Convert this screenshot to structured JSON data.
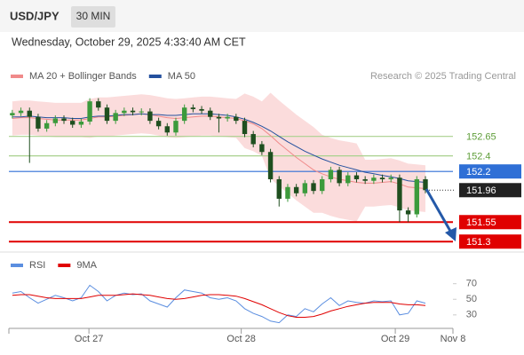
{
  "header": {
    "symbol": "USD/JPY",
    "timeframe": "30 MIN",
    "datetime": "Wednesday, October 29, 2025 4:33:40 AM CET"
  },
  "chart_data": [
    {
      "type": "candlestick",
      "credit": "Research © 2025 Trading Central",
      "xlim": [
        -0.4,
        51.2
      ],
      "ylim": [
        151.2,
        153.25
      ],
      "up_color": "#3c9a3c",
      "down_color": "#1f4f1f",
      "open": [
        152.92,
        152.95,
        152.98,
        152.9,
        152.75,
        152.82,
        152.88,
        152.85,
        152.8,
        152.84,
        153.1,
        153.02,
        152.85,
        152.95,
        152.98,
        152.96,
        152.97,
        152.85,
        152.78,
        152.7,
        152.85,
        153.02,
        153.0,
        152.98,
        152.9,
        152.88,
        152.9,
        152.85,
        152.68,
        152.55,
        152.45,
        152.1,
        151.85,
        152.0,
        151.92,
        152.05,
        151.95,
        152.1,
        152.22,
        152.05,
        152.15,
        152.1,
        152.08,
        152.12,
        152.1,
        152.12,
        151.7,
        151.65,
        152.1
      ],
      "high": [
        152.99,
        153.02,
        153.02,
        152.94,
        152.86,
        152.92,
        152.92,
        152.89,
        152.88,
        153.14,
        153.14,
        153.06,
        152.99,
        153.02,
        153.02,
        153.01,
        153.01,
        152.89,
        152.82,
        152.89,
        153.06,
        153.06,
        153.04,
        153.02,
        152.94,
        152.94,
        152.94,
        152.89,
        152.72,
        152.59,
        152.49,
        152.14,
        152.04,
        152.04,
        152.09,
        152.09,
        152.14,
        152.26,
        152.26,
        152.19,
        152.19,
        152.14,
        152.16,
        152.16,
        152.16,
        152.16,
        151.74,
        152.14,
        152.14
      ],
      "low": [
        152.88,
        152.91,
        152.31,
        152.71,
        152.71,
        152.78,
        152.81,
        152.76,
        152.76,
        152.8,
        152.98,
        152.81,
        152.81,
        152.91,
        152.92,
        152.92,
        152.81,
        152.74,
        152.66,
        152.66,
        152.81,
        152.96,
        152.94,
        152.86,
        152.7,
        152.84,
        152.81,
        152.64,
        152.51,
        152.41,
        152.06,
        151.75,
        151.81,
        151.88,
        151.88,
        151.91,
        151.91,
        152.06,
        152.01,
        152.01,
        152.06,
        152.04,
        152.04,
        152.06,
        152.06,
        151.55,
        151.55,
        151.61,
        151.92
      ],
      "close": [
        152.95,
        152.98,
        152.9,
        152.75,
        152.82,
        152.88,
        152.85,
        152.8,
        152.84,
        153.1,
        153.02,
        152.85,
        152.95,
        152.98,
        152.96,
        152.97,
        152.85,
        152.78,
        152.7,
        152.85,
        153.02,
        153.0,
        152.98,
        152.9,
        152.88,
        152.9,
        152.85,
        152.68,
        152.55,
        152.45,
        152.1,
        151.85,
        152.0,
        151.92,
        152.05,
        151.95,
        152.1,
        152.22,
        152.05,
        152.15,
        152.1,
        152.08,
        152.12,
        152.1,
        152.12,
        151.7,
        151.65,
        152.1,
        151.96
      ],
      "series": [
        {
          "name": "MA 20 + Bollinger Bands",
          "color": "#f08a8a",
          "values": [
            152.88,
            152.89,
            152.89,
            152.88,
            152.87,
            152.86,
            152.86,
            152.86,
            152.86,
            152.88,
            152.9,
            152.9,
            152.91,
            152.92,
            152.93,
            152.94,
            152.93,
            152.91,
            152.89,
            152.88,
            152.89,
            152.9,
            152.91,
            152.91,
            152.9,
            152.89,
            152.88,
            152.85,
            152.81,
            152.75,
            152.66,
            152.56,
            152.47,
            152.38,
            152.3,
            152.22,
            152.17,
            152.13,
            152.1,
            152.08,
            152.06,
            152.05,
            152.05,
            152.06,
            152.07,
            152.04,
            152.0,
            151.99,
            151.98
          ]
        },
        {
          "name": "MA 50",
          "color": "#24509e",
          "values": [
            152.9,
            152.9,
            152.91,
            152.9,
            152.89,
            152.89,
            152.89,
            152.88,
            152.88,
            152.9,
            152.91,
            152.91,
            152.92,
            152.93,
            152.93,
            152.94,
            152.93,
            152.93,
            152.92,
            152.92,
            152.93,
            152.94,
            152.94,
            152.94,
            152.93,
            152.92,
            152.9,
            152.87,
            152.83,
            152.78,
            152.72,
            152.65,
            152.58,
            152.52,
            152.46,
            152.41,
            152.36,
            152.32,
            152.28,
            152.25,
            152.22,
            152.19,
            152.17,
            152.15,
            152.13,
            152.11,
            152.08,
            152.07,
            152.06
          ]
        }
      ],
      "bands": {
        "color": "#fbdcdc",
        "upper": [
          153.1,
          153.11,
          153.11,
          153.1,
          153.09,
          153.08,
          153.08,
          153.08,
          153.08,
          153.13,
          153.15,
          153.15,
          153.16,
          153.17,
          153.18,
          153.19,
          153.18,
          153.16,
          153.14,
          153.13,
          153.14,
          153.15,
          153.16,
          153.16,
          153.15,
          153.14,
          153.13,
          153.2,
          153.16,
          153.1,
          153.21,
          153.11,
          153.02,
          152.93,
          152.85,
          152.77,
          152.67,
          152.63,
          152.6,
          152.58,
          152.56,
          152.35,
          152.35,
          152.36,
          152.37,
          152.34,
          152.3,
          152.29,
          152.28
        ],
        "lower": [
          152.66,
          152.67,
          152.67,
          152.66,
          152.65,
          152.64,
          152.64,
          152.64,
          152.64,
          152.63,
          152.65,
          152.65,
          152.66,
          152.67,
          152.68,
          152.69,
          152.68,
          152.66,
          152.64,
          152.63,
          152.64,
          152.65,
          152.66,
          152.66,
          152.65,
          152.64,
          152.63,
          152.5,
          152.46,
          152.4,
          152.11,
          152.01,
          151.92,
          151.83,
          151.75,
          151.67,
          151.67,
          151.63,
          151.6,
          151.58,
          151.56,
          151.75,
          151.75,
          151.76,
          151.77,
          151.74,
          151.7,
          151.69,
          151.68
        ]
      },
      "levels": [
        {
          "value": 152.65,
          "color": "#a9d18e",
          "text_color": "#5f9e3a"
        },
        {
          "value": 152.4,
          "color": "#a9d18e",
          "text_color": "#5f9e3a"
        },
        {
          "value": 152.2,
          "color": "#2f6fd6",
          "text_color": "#2f6fd6",
          "box": true
        },
        {
          "value": 151.55,
          "color": "#e00000",
          "text_color": "#e00000",
          "box": true
        },
        {
          "value": 151.3,
          "color": "#e00000",
          "text_color": "#e00000",
          "box": true
        }
      ],
      "last": {
        "value": 151.96,
        "color": "#222222"
      }
    },
    {
      "type": "line",
      "xlim": [
        -0.4,
        51.2
      ],
      "ylim": [
        15,
        81
      ],
      "yticks": [
        30,
        50,
        70
      ],
      "xticks": [
        {
          "value": 8.9,
          "label": "Oct 27"
        },
        {
          "value": 26.6,
          "label": "Oct 28"
        },
        {
          "value": 44.5,
          "label": "Oct 29"
        },
        {
          "value": 51.2,
          "label": "Nov 8"
        }
      ],
      "series": [
        {
          "name": "RSI",
          "color": "#5b8ee0",
          "values": [
            58,
            60,
            52,
            45,
            50,
            55,
            52,
            48,
            52,
            68,
            60,
            48,
            55,
            58,
            56,
            57,
            48,
            44,
            40,
            52,
            62,
            60,
            58,
            52,
            50,
            52,
            48,
            38,
            32,
            28,
            22,
            20,
            30,
            28,
            38,
            34,
            44,
            52,
            42,
            48,
            46,
            45,
            48,
            47,
            48,
            30,
            32,
            48,
            45
          ]
        },
        {
          "name": "9MA",
          "color": "#e00000",
          "values": [
            55,
            56,
            56,
            54,
            52,
            51,
            51,
            51,
            51,
            53,
            55,
            55,
            55,
            56,
            57,
            56,
            55,
            53,
            51,
            50,
            51,
            53,
            55,
            56,
            56,
            55,
            54,
            51,
            47,
            43,
            38,
            33,
            29,
            27,
            27,
            28,
            31,
            35,
            38,
            41,
            43,
            45,
            46,
            46,
            46,
            44,
            43,
            43,
            42
          ]
        }
      ]
    }
  ]
}
